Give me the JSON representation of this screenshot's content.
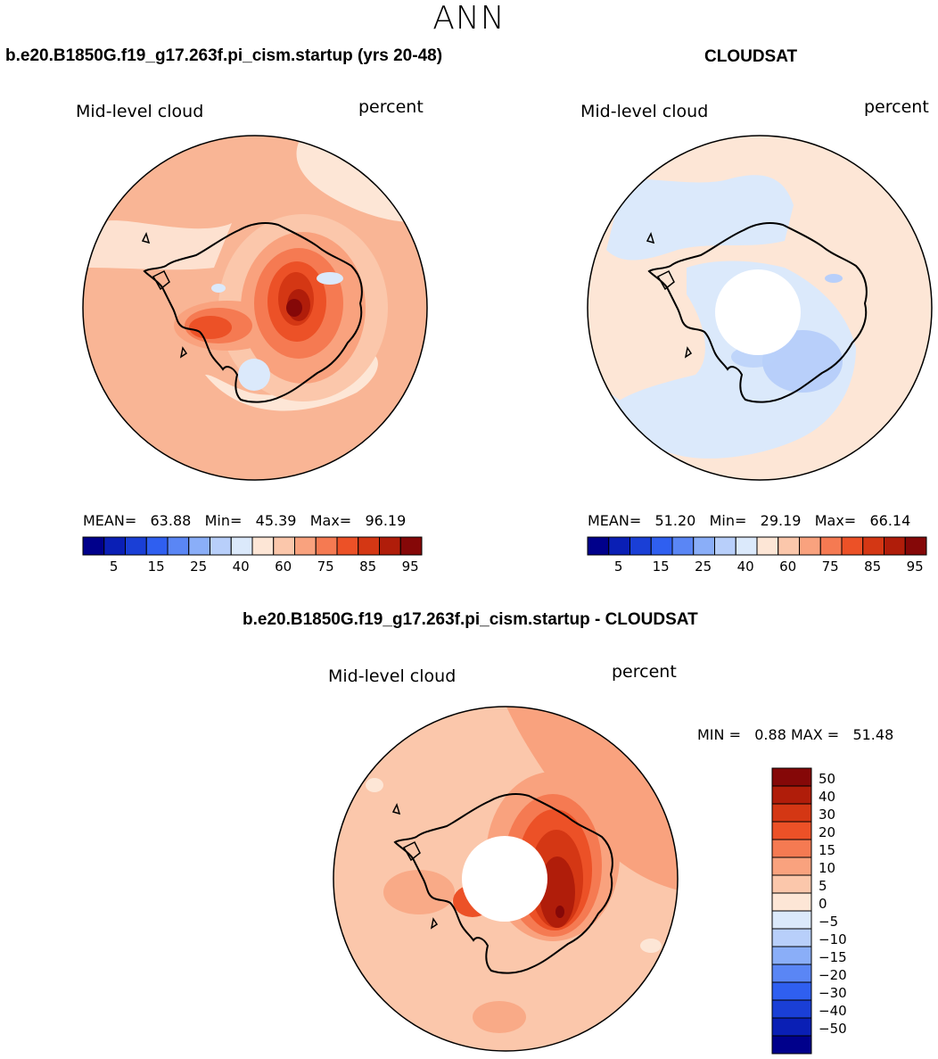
{
  "season": "ANN",
  "panels": {
    "model": {
      "title": "b.e20.B1850G.f19_g17.263f.pi_cism.startup (yrs 20-48)",
      "variable": "Mid-level cloud",
      "units": "percent",
      "stats": {
        "mean_label": "MEAN=",
        "mean": "63.88",
        "min_label": "Min=",
        "min": "45.39",
        "max_label": "Max=",
        "max": "96.19"
      }
    },
    "obs": {
      "title": "CLOUDSAT",
      "variable": "Mid-level cloud",
      "units": "percent",
      "stats": {
        "mean_label": "MEAN=",
        "mean": "51.20",
        "min_label": "Min=",
        "min": "29.19",
        "max_label": "Max=",
        "max": "66.14"
      }
    },
    "diff": {
      "title": "b.e20.B1850G.f19_g17.263f.pi_cism.startup - CLOUDSAT",
      "variable": "Mid-level cloud",
      "units": "percent",
      "stats": {
        "min_label": "MIN =",
        "min": "0.88",
        "max_label": "MAX =",
        "max": "51.48"
      }
    }
  },
  "colorbars": {
    "abs": {
      "colors": [
        "#00008b",
        "#0a1fb5",
        "#1a3fd6",
        "#2f5ff0",
        "#5a86f5",
        "#8aaef8",
        "#b8cffa",
        "#dbe9fb",
        "#fde6d6",
        "#fbc7ab",
        "#f9a27e",
        "#f57a52",
        "#ec5127",
        "#d43714",
        "#b01d0a",
        "#850808"
      ],
      "tick_labels": [
        "5",
        "15",
        "25",
        "40",
        "60",
        "75",
        "85",
        "95"
      ]
    },
    "diff": {
      "colors_top_to_bottom": [
        "#850808",
        "#b01d0a",
        "#d43714",
        "#ec5127",
        "#f57a52",
        "#f9a27e",
        "#fbc7ab",
        "#fde6d6",
        "#dbe9fb",
        "#b8cffa",
        "#8aaef8",
        "#5a86f5",
        "#2f5ff0",
        "#1a3fd6",
        "#0a1fb5",
        "#00008b"
      ],
      "tick_labels": [
        "50",
        "40",
        "30",
        "20",
        "15",
        "10",
        "5",
        "0",
        "−5",
        "−10",
        "−15",
        "−20",
        "−30",
        "−40",
        "−50"
      ]
    }
  }
}
